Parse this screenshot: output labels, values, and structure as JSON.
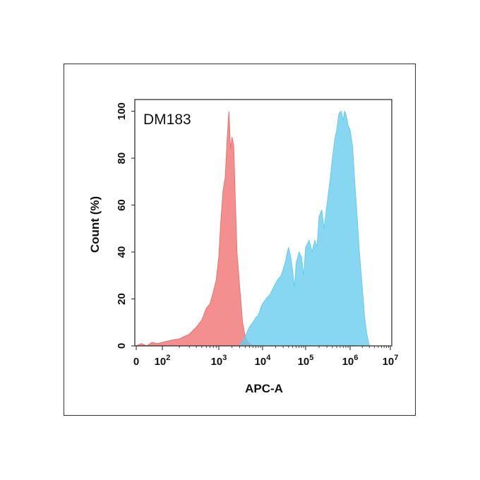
{
  "chart_data": {
    "type": "area",
    "title": "",
    "annotation": "DM183",
    "xlabel": "APC-A",
    "ylabel": "Count  (%)",
    "xscale": "biexponential",
    "xlim": [
      0,
      10000000
    ],
    "ylim": [
      0,
      105
    ],
    "grid": false,
    "yticks": [
      {
        "value": 0,
        "label": "0"
      },
      {
        "value": 20,
        "label": "20"
      },
      {
        "value": 40,
        "label": "40"
      },
      {
        "value": 60,
        "label": "60"
      },
      {
        "value": 80,
        "label": "80"
      },
      {
        "value": 100,
        "label": "100"
      }
    ],
    "xticks": [
      {
        "value": 0,
        "base": "0",
        "exp": ""
      },
      {
        "value": 100,
        "base": "10",
        "exp": "2"
      },
      {
        "value": 1000,
        "base": "10",
        "exp": "3"
      },
      {
        "value": 10000,
        "base": "10",
        "exp": "4"
      },
      {
        "value": 100000,
        "base": "10",
        "exp": "5"
      },
      {
        "value": 1000000,
        "base": "10",
        "exp": "6"
      },
      {
        "value": 10000000,
        "base": "10",
        "exp": "7"
      }
    ],
    "series": [
      {
        "color": "#f07070",
        "x": [
          0,
          20,
          40,
          60,
          80,
          100,
          150,
          200,
          300,
          400,
          500,
          600,
          700,
          800,
          900,
          1000,
          1100,
          1250,
          1400,
          1550,
          1700,
          1850,
          2000,
          2200,
          2400,
          2600,
          3000,
          3500,
          4000,
          4500,
          5000,
          6000
        ],
        "y": [
          0,
          1,
          0,
          1.5,
          1,
          1.5,
          2.5,
          3,
          5,
          8,
          11,
          16,
          18,
          23,
          28,
          38,
          52,
          66,
          72,
          88,
          100,
          84,
          89,
          85,
          60,
          40,
          25,
          10,
          4,
          2,
          1,
          0
        ]
      },
      {
        "color": "#66ccee",
        "x": [
          3000,
          4000,
          5000,
          6000,
          7000,
          8000,
          9000,
          10000,
          12000,
          15000,
          18000,
          22000,
          27000,
          33000,
          40000,
          45000,
          50000,
          55000,
          60000,
          70000,
          80000,
          90000,
          100000,
          120000,
          140000,
          160000,
          180000,
          200000,
          230000,
          260000,
          300000,
          350000,
          400000,
          450000,
          500000,
          560000,
          630000,
          700000,
          750000,
          800000,
          900000,
          1000000,
          1150000,
          1300000,
          1500000,
          1700000,
          2000000,
          2300000,
          2600000,
          3000000
        ],
        "y": [
          0,
          4,
          8,
          10,
          12,
          13,
          16,
          18,
          20,
          22,
          25,
          28,
          30,
          35,
          42,
          38,
          32,
          25,
          35,
          40,
          38,
          30,
          42,
          45,
          40,
          45,
          42,
          55,
          58,
          50,
          60,
          70,
          80,
          88,
          92,
          99,
          100,
          96,
          100,
          99,
          94,
          92,
          85,
          70,
          55,
          40,
          25,
          12,
          5,
          0
        ]
      }
    ]
  }
}
